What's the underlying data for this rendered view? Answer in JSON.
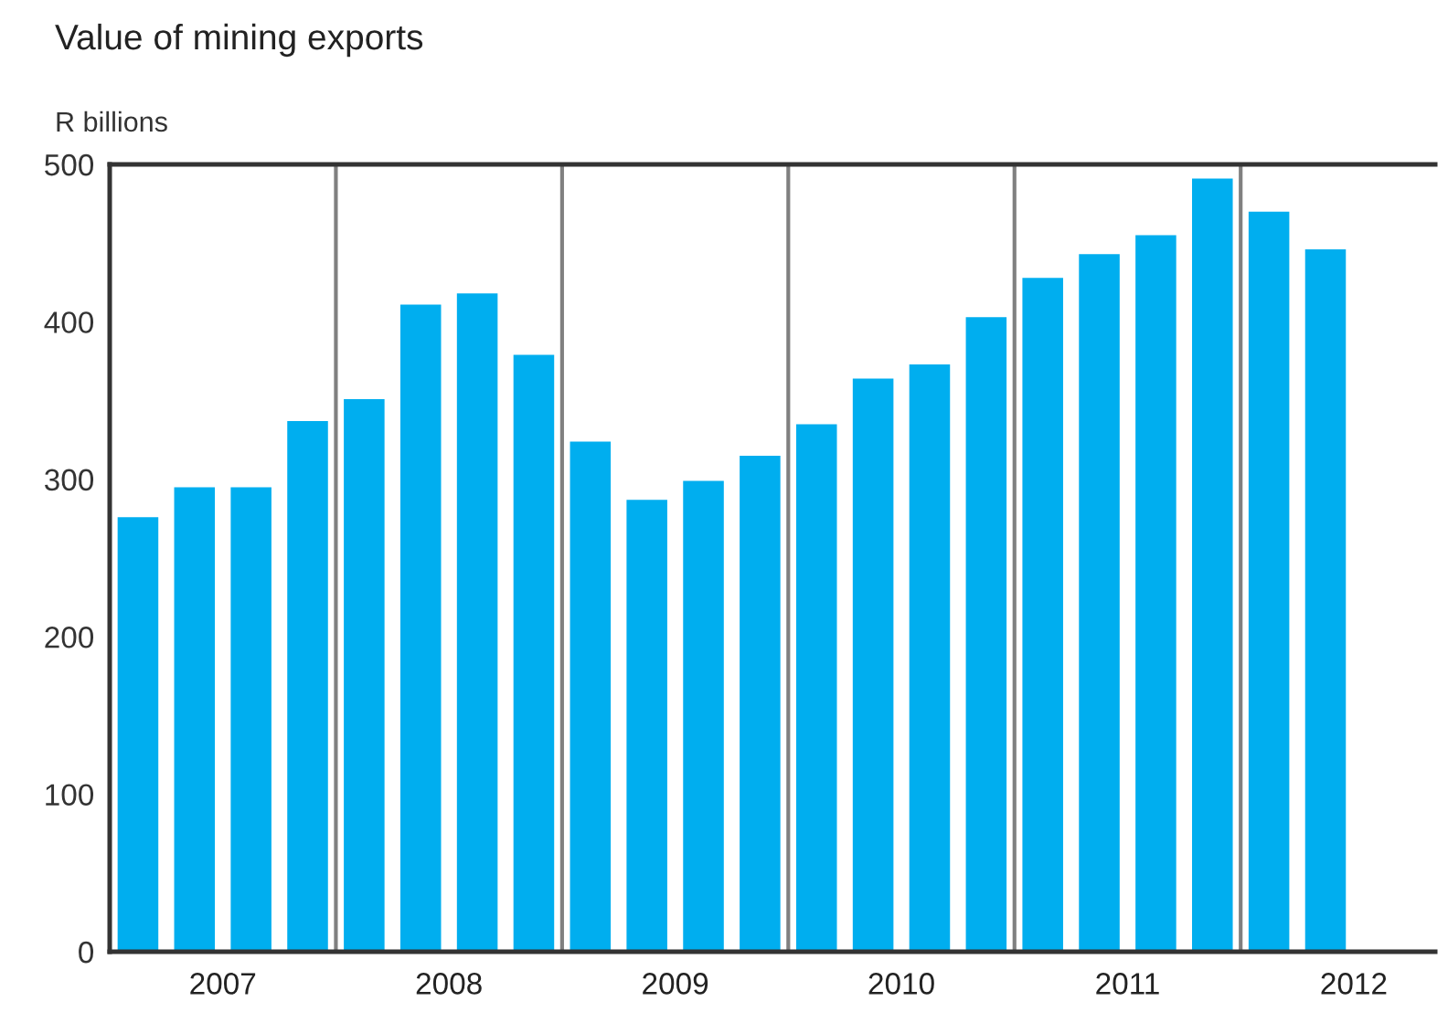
{
  "chart_data": {
    "type": "bar",
    "title": "Value of mining exports",
    "ylabel": "R billions",
    "x": [
      2007.125,
      2007.375,
      2007.625,
      2007.875,
      2008.125,
      2008.375,
      2008.625,
      2008.875,
      2009.125,
      2009.375,
      2009.625,
      2009.875,
      2010.125,
      2010.375,
      2010.625,
      2010.875,
      2011.125,
      2011.375,
      2011.625,
      2011.875,
      2012.125,
      2012.375
    ],
    "series": [
      {
        "color": "#00aeef",
        "values": [
          276,
          295,
          295,
          337,
          351,
          411,
          418,
          379,
          324,
          287,
          299,
          315,
          335,
          364,
          373,
          403,
          428,
          443,
          455,
          491,
          470,
          446
        ]
      }
    ],
    "xlim": [
      2007,
      2012.86
    ],
    "xticks": [
      {
        "value": 2007.5,
        "label": "2007"
      },
      {
        "value": 2008.5,
        "label": "2008"
      },
      {
        "value": 2009.5,
        "label": "2009"
      },
      {
        "value": 2010.5,
        "label": "2010"
      },
      {
        "value": 2011.5,
        "label": "2011"
      },
      {
        "value": 2012.5,
        "label": "2012"
      }
    ],
    "ylim": [
      0,
      500
    ],
    "yticks": [
      0,
      100,
      200,
      300,
      400,
      500
    ],
    "ref_lines": [
      {
        "axis": "x",
        "value": 2008,
        "color": "#808080"
      },
      {
        "axis": "x",
        "value": 2009,
        "color": "#808080"
      },
      {
        "axis": "x",
        "value": 2010,
        "color": "#808080"
      },
      {
        "axis": "x",
        "value": 2011,
        "color": "#808080"
      },
      {
        "axis": "x",
        "value": 2012,
        "color": "#808080"
      }
    ],
    "grid": false,
    "legend": false
  }
}
